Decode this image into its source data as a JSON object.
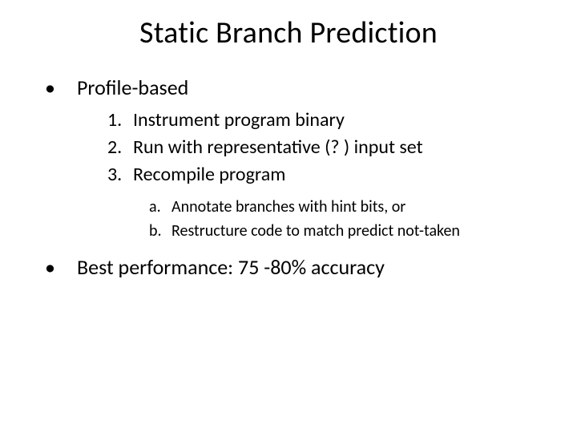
{
  "title": "Static Branch Prediction",
  "bullets": [
    {
      "text": "Profile-based"
    },
    {
      "text": "Best performance: 75 -80% accuracy"
    }
  ],
  "numbered": [
    {
      "label": "1.",
      "text": "Instrument program binary"
    },
    {
      "label": "2.",
      "text": "Run with representative (? ) input set"
    },
    {
      "label": "3.",
      "text": "Recompile program"
    }
  ],
  "sub": [
    {
      "label": "a.",
      "text": "Annotate branches with hint bits, or"
    },
    {
      "label": "b.",
      "text": "Restructure code to match predict not-taken"
    }
  ],
  "colors": {
    "background": "#ffffff",
    "text": "#000000"
  },
  "fonts": {
    "title_size_pt": 38,
    "bullet_size_pt": 26,
    "numbered_size_pt": 24,
    "sub_size_pt": 20,
    "family": "Calibri"
  }
}
